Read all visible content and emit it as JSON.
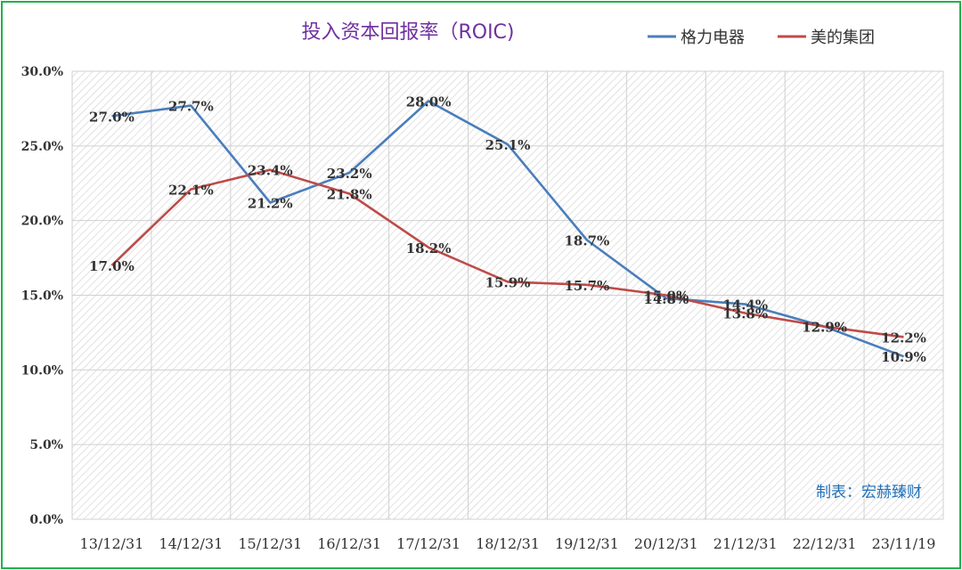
{
  "chart_data": {
    "type": "line",
    "title": "投入资本回报率（ROIC)",
    "categories": [
      "13/12/31",
      "14/12/31",
      "15/12/31",
      "16/12/31",
      "17/12/31",
      "18/12/31",
      "19/12/31",
      "20/12/31",
      "21/12/31",
      "22/12/31",
      "23/11/19"
    ],
    "ylim": [
      0,
      30
    ],
    "yticks": [
      0,
      5,
      10,
      15,
      20,
      25,
      30
    ],
    "ytick_labels": [
      "0.0%",
      "5.0%",
      "10.0%",
      "15.0%",
      "20.0%",
      "25.0%",
      "30.0%"
    ],
    "series": [
      {
        "name": "格力电器",
        "color": "#4a7ebb",
        "values": [
          27.0,
          27.7,
          21.2,
          23.2,
          28.0,
          25.1,
          18.7,
          14.8,
          14.4,
          12.9,
          10.9
        ],
        "labels": [
          "27.0%",
          "27.7%",
          "21.2%",
          "23.2%",
          "28.0%",
          "25.1%",
          "18.7%",
          "14.8%",
          "14.4%",
          "12.9%",
          "10.9%"
        ]
      },
      {
        "name": "美的集团",
        "color": "#be4b48",
        "values": [
          17.0,
          22.1,
          23.4,
          21.8,
          18.2,
          15.9,
          15.7,
          15.0,
          13.8,
          12.9,
          12.2
        ],
        "labels": [
          "17.0%",
          "22.1%",
          "23.4%",
          "21.8%",
          "18.2%",
          "15.9%",
          "15.7%",
          "15.0%",
          "13.8%",
          "12.9%",
          "12.2%"
        ]
      }
    ],
    "grid": true,
    "legend": "top-right",
    "credit": "制表：宏赫臻财"
  }
}
